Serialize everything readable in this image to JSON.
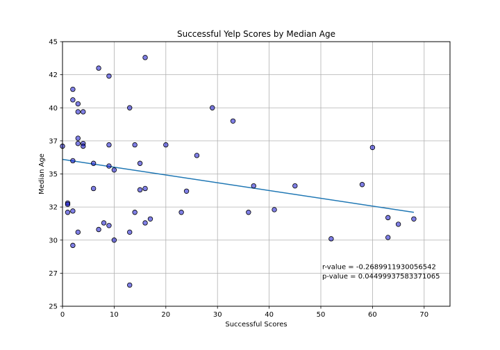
{
  "chart_data": {
    "type": "scatter",
    "title": "Successful Yelp Scores by Median Age",
    "xlabel": "Successful Scores",
    "ylabel": "Median Age",
    "xlim": [
      0,
      75
    ],
    "ylim": [
      25,
      45
    ],
    "xticks": [
      0,
      10,
      20,
      30,
      40,
      50,
      60,
      70
    ],
    "yticks": [
      25,
      27.5,
      30,
      32.5,
      35,
      37.5,
      40,
      42.5,
      45
    ],
    "ytick_labels": [
      "25",
      "27",
      "30",
      "32",
      "35",
      "37",
      "40",
      "42",
      "45"
    ],
    "grid": true,
    "point_color": "#0000cc",
    "point_edge_color": "#000000",
    "line_color": "#1f77b4",
    "points": [
      {
        "x": 0,
        "y": 37.1
      },
      {
        "x": 1,
        "y": 32.8
      },
      {
        "x": 1,
        "y": 32.7
      },
      {
        "x": 1,
        "y": 32.1
      },
      {
        "x": 2,
        "y": 41.4
      },
      {
        "x": 2,
        "y": 40.6
      },
      {
        "x": 2,
        "y": 36.0
      },
      {
        "x": 2,
        "y": 32.2
      },
      {
        "x": 2,
        "y": 29.6
      },
      {
        "x": 3,
        "y": 40.3
      },
      {
        "x": 3,
        "y": 39.7
      },
      {
        "x": 3,
        "y": 37.7
      },
      {
        "x": 3,
        "y": 37.3
      },
      {
        "x": 3,
        "y": 30.6
      },
      {
        "x": 4,
        "y": 39.7
      },
      {
        "x": 4,
        "y": 37.3
      },
      {
        "x": 4,
        "y": 37.1
      },
      {
        "x": 6,
        "y": 35.8
      },
      {
        "x": 6,
        "y": 33.9
      },
      {
        "x": 7,
        "y": 43.0
      },
      {
        "x": 7,
        "y": 30.8
      },
      {
        "x": 8,
        "y": 31.3
      },
      {
        "x": 9,
        "y": 42.4
      },
      {
        "x": 9,
        "y": 37.2
      },
      {
        "x": 9,
        "y": 35.6
      },
      {
        "x": 9,
        "y": 31.1
      },
      {
        "x": 10,
        "y": 35.3
      },
      {
        "x": 10,
        "y": 30.0
      },
      {
        "x": 13,
        "y": 40.0
      },
      {
        "x": 13,
        "y": 30.6
      },
      {
        "x": 13,
        "y": 26.6
      },
      {
        "x": 14,
        "y": 37.2
      },
      {
        "x": 14,
        "y": 32.1
      },
      {
        "x": 15,
        "y": 35.8
      },
      {
        "x": 15,
        "y": 33.8
      },
      {
        "x": 16,
        "y": 43.8
      },
      {
        "x": 16,
        "y": 33.9
      },
      {
        "x": 16,
        "y": 31.3
      },
      {
        "x": 17,
        "y": 31.6
      },
      {
        "x": 20,
        "y": 37.2
      },
      {
        "x": 23,
        "y": 32.1
      },
      {
        "x": 24,
        "y": 33.7
      },
      {
        "x": 26,
        "y": 36.4
      },
      {
        "x": 29,
        "y": 40.0
      },
      {
        "x": 33,
        "y": 39.0
      },
      {
        "x": 36,
        "y": 32.1
      },
      {
        "x": 37,
        "y": 34.1
      },
      {
        "x": 41,
        "y": 32.3
      },
      {
        "x": 45,
        "y": 34.1
      },
      {
        "x": 52,
        "y": 30.1
      },
      {
        "x": 58,
        "y": 34.2
      },
      {
        "x": 60,
        "y": 37.0
      },
      {
        "x": 63,
        "y": 31.7
      },
      {
        "x": 63,
        "y": 30.2
      },
      {
        "x": 65,
        "y": 31.2
      },
      {
        "x": 68,
        "y": 31.6
      }
    ],
    "regression": {
      "x": [
        0,
        68
      ],
      "y": [
        36.1,
        32.1
      ]
    },
    "annotations": [
      {
        "text": "r-value = -0.2689911930056542",
        "x": 50,
        "y": 27.8
      },
      {
        "text": "p-value = 0.04499937583371065",
        "x": 50,
        "y": 27.1
      }
    ]
  }
}
